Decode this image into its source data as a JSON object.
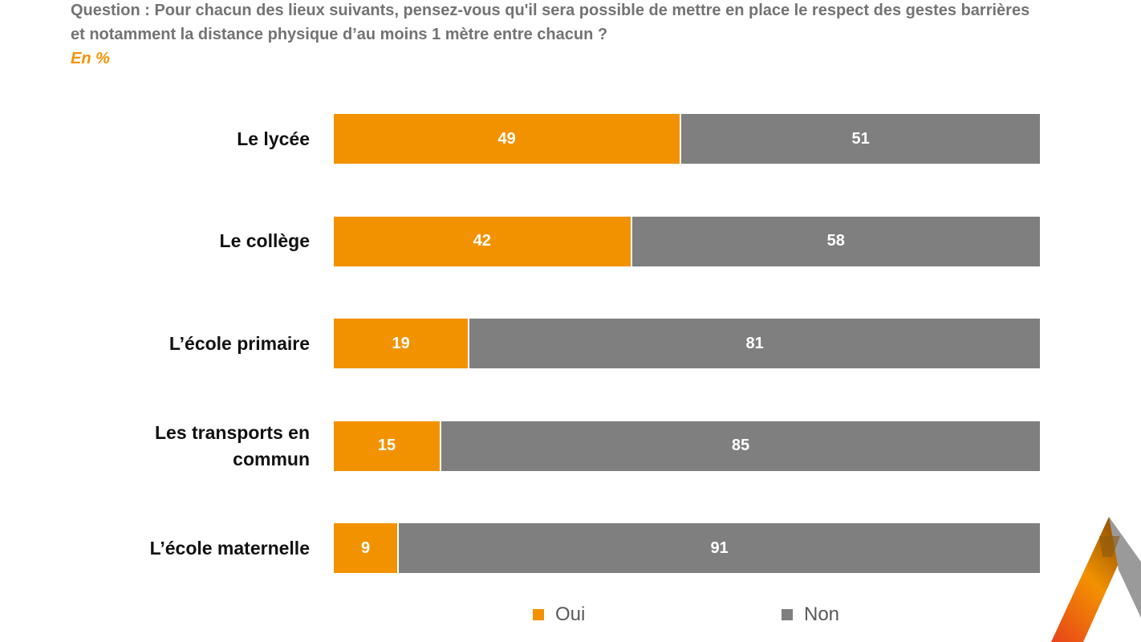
{
  "header": {
    "question": "Question : Pour chacun des lieux suivants, pensez-vous qu'il sera possible de mettre en place le respect des gestes barrières et notamment la distance physique d’au moins 1 mètre entre chacun ?",
    "unit": "En %"
  },
  "colors": {
    "oui": "#f39200",
    "non": "#7f7f7f"
  },
  "chart_data": {
    "type": "bar",
    "orientation": "horizontal",
    "stacked": true,
    "categories": [
      "Le lycée",
      "Le collège",
      "L’école primaire",
      "Les transports en commun",
      "L’école maternelle"
    ],
    "series": [
      {
        "name": "Oui",
        "values": [
          49,
          42,
          19,
          15,
          9
        ]
      },
      {
        "name": "Non",
        "values": [
          51,
          58,
          81,
          85,
          91
        ]
      }
    ],
    "xlim": [
      0,
      100
    ],
    "legend_position": "bottom",
    "grid": false
  }
}
